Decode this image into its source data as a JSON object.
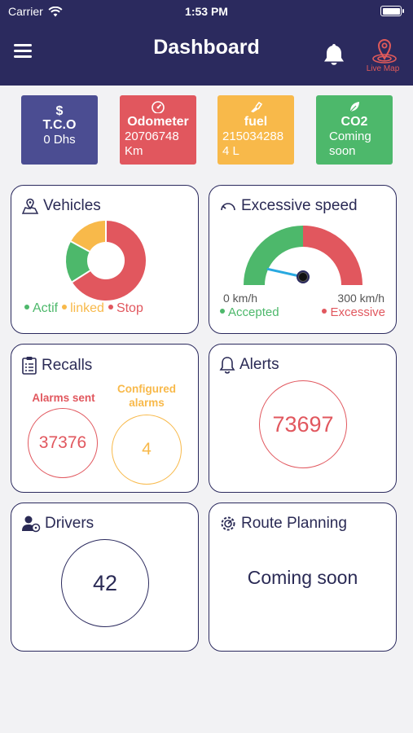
{
  "status_bar": {
    "carrier": "Carrier",
    "time": "1:53 PM"
  },
  "header": {
    "title": "Dashboard",
    "live_map_label": "Live Map",
    "icons": {
      "menu": "hamburger-menu-icon",
      "notifications": "bell-icon",
      "live_map": "map-pin-icon"
    }
  },
  "stats": {
    "tco": {
      "symbol": "$",
      "label": "T.C.O",
      "value": "0 Dhs",
      "color": "#4b4d92"
    },
    "odometer": {
      "label": "Odometer",
      "value": "20706748",
      "unit": "Km",
      "color": "#e1575e"
    },
    "fuel": {
      "label": "fuel",
      "value": "215034288",
      "unit": "4 L",
      "color": "#f8b94a"
    },
    "co2": {
      "label": "CO2",
      "value_line1": "Coming",
      "value_line2": "soon",
      "color": "#4db86b"
    }
  },
  "vehicles": {
    "title": "Vehicles",
    "legend": [
      {
        "label": "Actif",
        "color": "#4db86b"
      },
      {
        "label": "linked",
        "color": "#f8b94a"
      },
      {
        "label": "Stop",
        "color": "#e1575e"
      }
    ],
    "donut": {
      "shares": [
        0.17,
        0.17,
        0.66
      ],
      "colors": [
        "#4db86b",
        "#f8b94a",
        "#e1575e"
      ]
    }
  },
  "excessive_speed": {
    "title": "Excessive speed",
    "min_label": "0 km/h",
    "max_label": "300 km/h",
    "legend": [
      {
        "label": "Accepted",
        "color": "#4db86b"
      },
      {
        "label": "Excessive",
        "color": "#e1575e"
      }
    ],
    "needle_fraction": 0.07
  },
  "recalls": {
    "title": "Recalls",
    "alarms_sent_label": "Alarms sent",
    "alarms_sent_value": "37376",
    "configured_label_line1": "Configured",
    "configured_label_line2": "alarms",
    "configured_value": "4"
  },
  "alerts": {
    "title": "Alerts",
    "value": "73697"
  },
  "drivers": {
    "title": "Drivers",
    "value": "42"
  },
  "route_planning": {
    "title": "Route Planning",
    "status": "Coming soon"
  }
}
